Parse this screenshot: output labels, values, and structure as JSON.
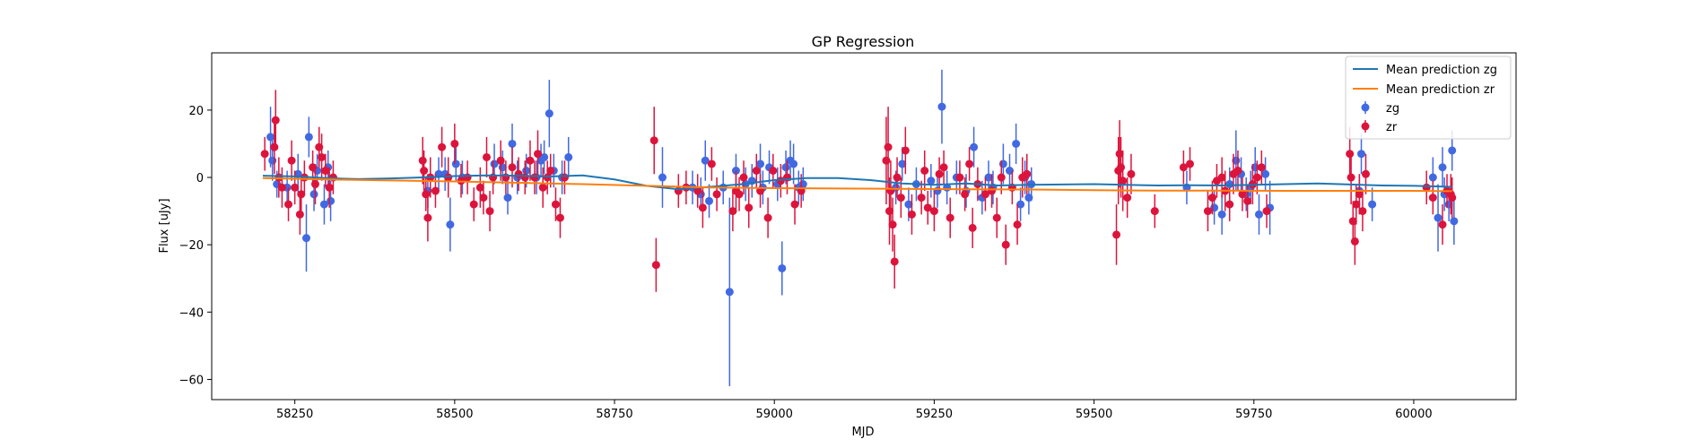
{
  "chart_data": {
    "type": "scatter",
    "title": "GP Regression",
    "xlabel": "MJD",
    "ylabel": "Flux [uJy]",
    "xlim": [
      58120,
      60160
    ],
    "ylim": [
      -66,
      37
    ],
    "x_ticks": [
      58250,
      58500,
      58750,
      59000,
      59250,
      59500,
      59750,
      60000
    ],
    "y_ticks": [
      20,
      0,
      -20,
      -40,
      -60
    ],
    "legend_position": "top-right",
    "colors": {
      "mean_zg": "#1f77b4",
      "mean_zr": "#ff7f0e",
      "zg": "#4169e1",
      "zr": "#dc143c"
    },
    "lines": [
      {
        "name": "Mean prediction zg",
        "x": [
          58200,
          58250,
          58300,
          58350,
          58400,
          58450,
          58500,
          58550,
          58600,
          58650,
          58700,
          58750,
          58800,
          58850,
          58900,
          58950,
          59000,
          59050,
          59100,
          59150,
          59200,
          59250,
          59300,
          59350,
          59400,
          59450,
          59500,
          59550,
          59600,
          59650,
          59700,
          59750,
          59800,
          59850,
          59900,
          59950,
          60000,
          60060
        ],
        "y": [
          0.5,
          0.3,
          -0.2,
          -0.5,
          -0.3,
          0,
          0.4,
          0.6,
          0.5,
          0.3,
          0.6,
          -0.6,
          -2.5,
          -3.5,
          -2.8,
          -2,
          -0.8,
          -0.2,
          -0.2,
          -0.8,
          -1.8,
          -2.2,
          -1.8,
          -2.4,
          -2.2,
          -2.1,
          -2,
          -2.2,
          -2.4,
          -2.3,
          -2.4,
          -2.2,
          -2,
          -1.8,
          -2.1,
          -2.4,
          -2.5,
          -2.8
        ]
      },
      {
        "name": "Mean prediction zr",
        "x": [
          58200,
          58300,
          58400,
          58500,
          58600,
          58700,
          58800,
          58900,
          59000,
          59100,
          59200,
          59300,
          59400,
          59500,
          59600,
          59700,
          59800,
          59900,
          60000,
          60060
        ],
        "y": [
          -0.2,
          -0.6,
          -0.9,
          -1.2,
          -1.6,
          -2.0,
          -2.5,
          -3.0,
          -3.2,
          -3.3,
          -3.4,
          -3.5,
          -3.6,
          -3.8,
          -3.9,
          -3.9,
          -4.0,
          -4.0,
          -4.0,
          -4.1
        ]
      }
    ],
    "series": [
      {
        "name": "zg",
        "x": [
          58212,
          58215,
          58222,
          58238,
          58255,
          58268,
          58272,
          58280,
          58285,
          58296,
          58302,
          58306,
          58458,
          58475,
          58485,
          58493,
          58502,
          58512,
          58562,
          58575,
          58583,
          58590,
          58598,
          58612,
          58628,
          58635,
          58640,
          58648,
          58655,
          58668,
          58678,
          58825,
          58872,
          58885,
          58892,
          58898,
          58920,
          58930,
          58940,
          58955,
          58965,
          58978,
          58982,
          58992,
          59005,
          59012,
          59018,
          59025,
          59030,
          59038,
          59045,
          59190,
          59200,
          59210,
          59222,
          59245,
          59255,
          59262,
          59270,
          59285,
          59300,
          59312,
          59325,
          59335,
          59342,
          59358,
          59368,
          59378,
          59385,
          59392,
          59398,
          59402,
          59645,
          59688,
          59700,
          59712,
          59722,
          59730,
          59738,
          59745,
          59752,
          59758,
          59768,
          59775,
          59915,
          59918,
          59935,
          60030,
          60038,
          60045,
          60048,
          60055,
          60060,
          60063
        ],
        "y": [
          12,
          5,
          -2,
          -3,
          1,
          -18,
          12,
          -5,
          2,
          -8,
          3,
          -7,
          -4,
          1,
          1,
          -14,
          4,
          0,
          4,
          3,
          -6,
          10,
          0,
          2,
          0,
          5,
          6,
          19,
          2,
          0,
          6,
          0,
          -3,
          -5,
          5,
          -7,
          -3,
          -34,
          2,
          -2,
          -1,
          4,
          -3,
          3,
          -2,
          -27,
          3,
          5,
          4,
          -3,
          -2,
          -3,
          4,
          -8,
          -2,
          -1,
          -4,
          21,
          -3,
          0,
          -4,
          9,
          -6,
          0,
          -3,
          4,
          2,
          10,
          -8,
          0,
          -6,
          -2,
          -3,
          -9,
          -11,
          -2,
          5,
          1,
          -5,
          -3,
          3,
          -11,
          1,
          -9,
          -4,
          7,
          -8,
          0,
          -12,
          3,
          -5,
          -8,
          8,
          -13
        ],
        "err": [
          9,
          6,
          4,
          5,
          6,
          10,
          6,
          5,
          5,
          6,
          5,
          6,
          5,
          5,
          5,
          8,
          5,
          5,
          6,
          5,
          5,
          6,
          5,
          5,
          5,
          5,
          5,
          10,
          5,
          5,
          6,
          9,
          5,
          5,
          6,
          5,
          5,
          28,
          5,
          5,
          5,
          6,
          5,
          5,
          5,
          8,
          5,
          6,
          6,
          5,
          5,
          5,
          5,
          5,
          5,
          5,
          5,
          11,
          5,
          5,
          5,
          6,
          5,
          5,
          5,
          6,
          5,
          6,
          5,
          5,
          5,
          5,
          5,
          5,
          6,
          5,
          9,
          5,
          5,
          5,
          6,
          6,
          5,
          8,
          5,
          6,
          5,
          6,
          10,
          6,
          5,
          5,
          6,
          7
        ]
      },
      {
        "name": "zr",
        "x": [
          58203,
          58218,
          58220,
          58225,
          58230,
          58240,
          58245,
          58250,
          58258,
          58260,
          58265,
          58278,
          58282,
          58288,
          58292,
          58298,
          58304,
          58310,
          58450,
          58452,
          58455,
          58458,
          58462,
          58470,
          58480,
          58490,
          58500,
          58510,
          58520,
          58530,
          58540,
          58545,
          58550,
          58555,
          58560,
          58572,
          58580,
          58590,
          58600,
          58610,
          58618,
          58625,
          58630,
          58638,
          58645,
          58650,
          58658,
          58665,
          58672,
          58812,
          58815,
          58850,
          58862,
          58880,
          58888,
          58902,
          58910,
          58935,
          58940,
          58945,
          58952,
          58960,
          58972,
          58978,
          58990,
          58998,
          59010,
          59020,
          59032,
          59042,
          59175,
          59178,
          59180,
          59182,
          59185,
          59188,
          59192,
          59198,
          59205,
          59215,
          59230,
          59235,
          59240,
          59250,
          59258,
          59265,
          59275,
          59290,
          59298,
          59305,
          59310,
          59318,
          59330,
          59340,
          59348,
          59355,
          59362,
          59372,
          59380,
          59388,
          59395,
          59535,
          59538,
          59540,
          59542,
          59545,
          59552,
          59558,
          59595,
          59640,
          59650,
          59678,
          59685,
          59692,
          59700,
          59705,
          59712,
          59718,
          59725,
          59732,
          59740,
          59748,
          59755,
          59762,
          59770,
          59900,
          59902,
          59905,
          59908,
          59910,
          59915,
          59920,
          59925,
          60020,
          60030,
          60045,
          60052,
          60058,
          60060
        ],
        "y": [
          7,
          9,
          17,
          0,
          -3,
          -8,
          5,
          -3,
          -11,
          -5,
          0,
          3,
          -2,
          9,
          6,
          2,
          -3,
          0,
          5,
          2,
          -5,
          -12,
          0,
          -4,
          9,
          0,
          10,
          -1,
          0,
          -8,
          -3,
          -6,
          6,
          -10,
          0,
          5,
          0,
          3,
          1,
          0,
          5,
          0,
          7,
          -3,
          0,
          2,
          -8,
          -12,
          0,
          11,
          -26,
          -4,
          -3,
          -4,
          -9,
          4,
          -5,
          -10,
          -4,
          -5,
          0,
          -9,
          2,
          -4,
          -12,
          2,
          -1,
          0,
          -8,
          -4,
          5,
          9,
          -10,
          -4,
          -14,
          -25,
          0,
          -6,
          8,
          -11,
          -6,
          2,
          -9,
          -10,
          1,
          3,
          -12,
          0,
          -5,
          4,
          -15,
          -2,
          -5,
          -4,
          -12,
          0,
          -20,
          -3,
          -14,
          0,
          1,
          -17,
          2,
          7,
          3,
          -1,
          -6,
          1,
          -10,
          3,
          4,
          -10,
          -6,
          -1,
          0,
          -4,
          -8,
          1,
          2,
          -5,
          -7,
          -2,
          0,
          3,
          -10,
          7,
          0,
          -13,
          -19,
          -8,
          -5,
          -10,
          1,
          -3,
          -6,
          -14,
          -4,
          -5,
          -6
        ],
        "err": [
          5,
          8,
          9,
          6,
          6,
          5,
          6,
          5,
          6,
          5,
          5,
          5,
          6,
          6,
          7,
          5,
          6,
          5,
          7,
          6,
          5,
          7,
          6,
          5,
          6,
          6,
          6,
          5,
          5,
          5,
          6,
          5,
          6,
          6,
          5,
          6,
          5,
          6,
          5,
          5,
          6,
          5,
          7,
          6,
          5,
          5,
          5,
          6,
          5,
          10,
          8,
          5,
          5,
          5,
          6,
          5,
          5,
          6,
          6,
          5,
          5,
          6,
          5,
          5,
          6,
          5,
          5,
          5,
          6,
          5,
          13,
          12,
          10,
          9,
          8,
          8,
          6,
          6,
          7,
          6,
          5,
          6,
          5,
          6,
          5,
          5,
          6,
          5,
          5,
          5,
          6,
          5,
          5,
          5,
          6,
          5,
          6,
          5,
          6,
          6,
          6,
          9,
          10,
          10,
          9,
          9,
          6,
          6,
          5,
          5,
          5,
          6,
          5,
          5,
          6,
          6,
          5,
          6,
          6,
          5,
          5,
          6,
          5,
          5,
          5,
          8,
          8,
          6,
          7,
          6,
          6,
          6,
          6,
          5,
          5,
          6,
          5,
          6,
          6
        ]
      }
    ]
  }
}
